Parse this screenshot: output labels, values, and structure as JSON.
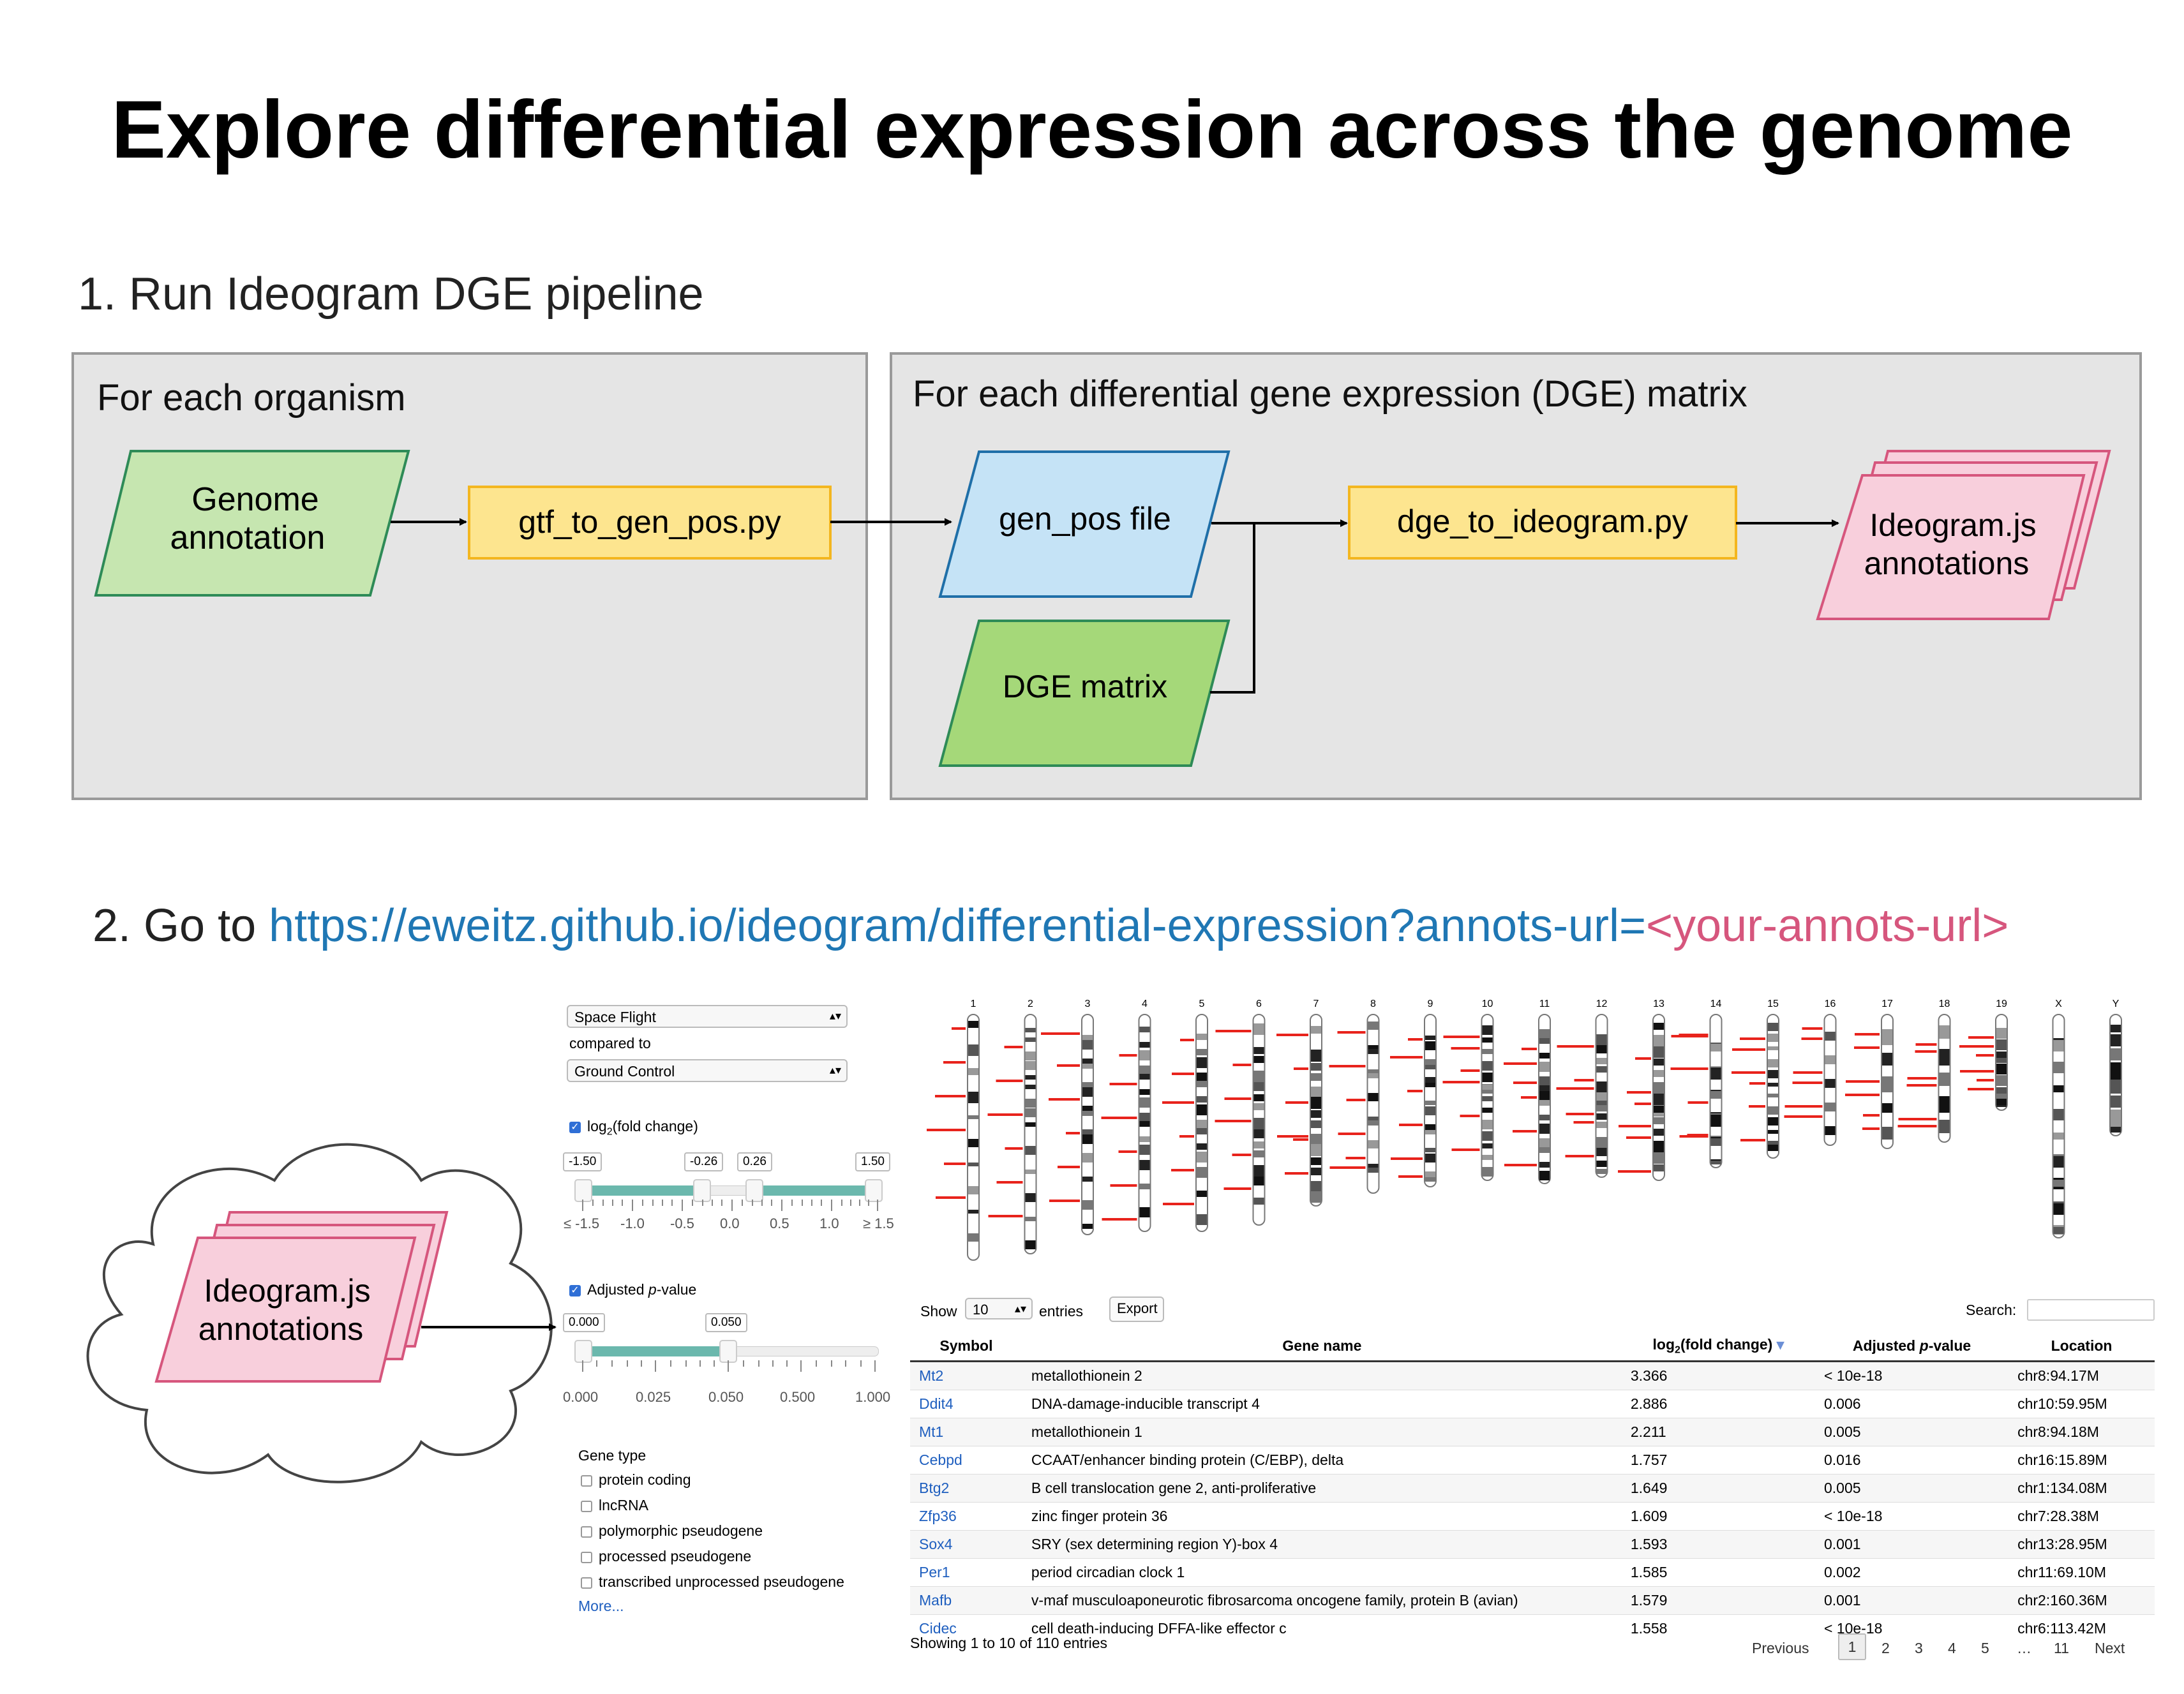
{
  "title": "Explore differential expression across the genome",
  "step1": {
    "label": "1. Run Ideogram DGE pipeline"
  },
  "organism_box": {
    "label": "For each organism"
  },
  "dge_box": {
    "label": "For each differential gene expression (DGE) matrix"
  },
  "nodes": {
    "genome_annotation": [
      "Genome",
      "annotation"
    ],
    "gtf_script": "gtf_to_gen_pos.py",
    "gen_pos_file": "gen_pos file",
    "dge_matrix": "DGE matrix",
    "dge_script": "dge_to_ideogram.py",
    "ideogram_annotations": [
      "Ideogram.js",
      "annotations"
    ]
  },
  "step2": {
    "prefix": "2.  Go to ",
    "url": "https://eweitz.github.io/ideogram/differential-expression?annots-url=",
    "placeholder": "<your-annots-url>"
  },
  "cloud_node": [
    "Ideogram.js",
    "annotations"
  ],
  "controls": {
    "condition_a": "Space Flight",
    "compared_to": "compared to",
    "condition_b": "Ground Control",
    "log2_label_pre": "log",
    "log2_label_sub": "2",
    "log2_label_post": "(fold change)",
    "log2_checked": true,
    "log2_handles": [
      "-1.50",
      "-0.26",
      "0.26",
      "1.50"
    ],
    "log2_ticks": [
      "≤ -1.5",
      "-1.0",
      "-0.5",
      "0.0",
      "0.5",
      "1.0",
      "≥ 1.5"
    ],
    "pval_label_pre": "Adjusted ",
    "pval_label_italic": "p",
    "pval_label_post": "-value",
    "pval_checked": true,
    "pval_handles": [
      "0.000",
      "0.050"
    ],
    "pval_ticks": [
      "0.000",
      "0.025",
      "0.050",
      "0.500",
      "1.000"
    ],
    "gene_type_label": "Gene type",
    "gene_types": [
      "protein coding",
      "lncRNA",
      "polymorphic pseudogene",
      "processed pseudogene",
      "transcribed unprocessed pseudogene"
    ],
    "more_link": "More..."
  },
  "chromosomes": [
    "1",
    "2",
    "3",
    "4",
    "5",
    "6",
    "7",
    "8",
    "9",
    "10",
    "11",
    "12",
    "13",
    "14",
    "15",
    "16",
    "17",
    "18",
    "19",
    "X",
    "Y"
  ],
  "table": {
    "show_label": "Show",
    "entries_value": "10",
    "entries_label": "entries",
    "export_label": "Export",
    "search_label": "Search:",
    "columns": {
      "symbol": "Symbol",
      "gene_name": "Gene name",
      "log2_pre": "log",
      "log2_sub": "2",
      "log2_post": "(fold change)",
      "pval_pre": "Adjusted ",
      "pval_italic": "p",
      "pval_post": "-value",
      "location": "Location"
    },
    "rows": [
      [
        "Mt2",
        "metallothionein 2",
        "3.366",
        "< 10e-18",
        "chr8:94.17M"
      ],
      [
        "Ddit4",
        "DNA-damage-inducible transcript 4",
        "2.886",
        "0.006",
        "chr10:59.95M"
      ],
      [
        "Mt1",
        "metallothionein 1",
        "2.211",
        "0.005",
        "chr8:94.18M"
      ],
      [
        "Cebpd",
        "CCAAT/enhancer binding protein (C/EBP), delta",
        "1.757",
        "0.016",
        "chr16:15.89M"
      ],
      [
        "Btg2",
        "B cell translocation gene 2, anti-proliferative",
        "1.649",
        "0.005",
        "chr1:134.08M"
      ],
      [
        "Zfp36",
        "zinc finger protein 36",
        "1.609",
        "< 10e-18",
        "chr7:28.38M"
      ],
      [
        "Sox4",
        "SRY (sex determining region Y)-box 4",
        "1.593",
        "0.001",
        "chr13:28.95M"
      ],
      [
        "Per1",
        "period circadian clock 1",
        "1.585",
        "0.002",
        "chr11:69.10M"
      ],
      [
        "Mafb",
        "v-maf musculoaponeurotic fibrosarcoma oncogene family, protein B (avian)",
        "1.579",
        "0.001",
        "chr2:160.36M"
      ],
      [
        "Cidec",
        "cell death-inducing DFFA-like effector c",
        "1.558",
        "< 10e-18",
        "chr6:113.42M"
      ]
    ],
    "footer": "Showing 1 to 10 of 110 entries",
    "pagination": [
      "Previous",
      "1",
      "2",
      "3",
      "4",
      "5",
      "…",
      "11",
      "Next"
    ]
  },
  "colors": {
    "genome_fill": "#c6e6b0",
    "genome_stroke": "#2e8b57",
    "script_fill": "#fde58f",
    "script_stroke": "#f3b61f",
    "genpos_fill": "#c5e3f6",
    "genpos_stroke": "#1f6fa8",
    "dge_fill": "#a5d879",
    "annot_fill": "#f8cfdc",
    "annot_stroke": "#d6567d",
    "url_color": "#1f77b4",
    "placeholder_color": "#d6567d",
    "slider_fill": "#6bb8ad",
    "annotation_red": "#e8231c"
  }
}
